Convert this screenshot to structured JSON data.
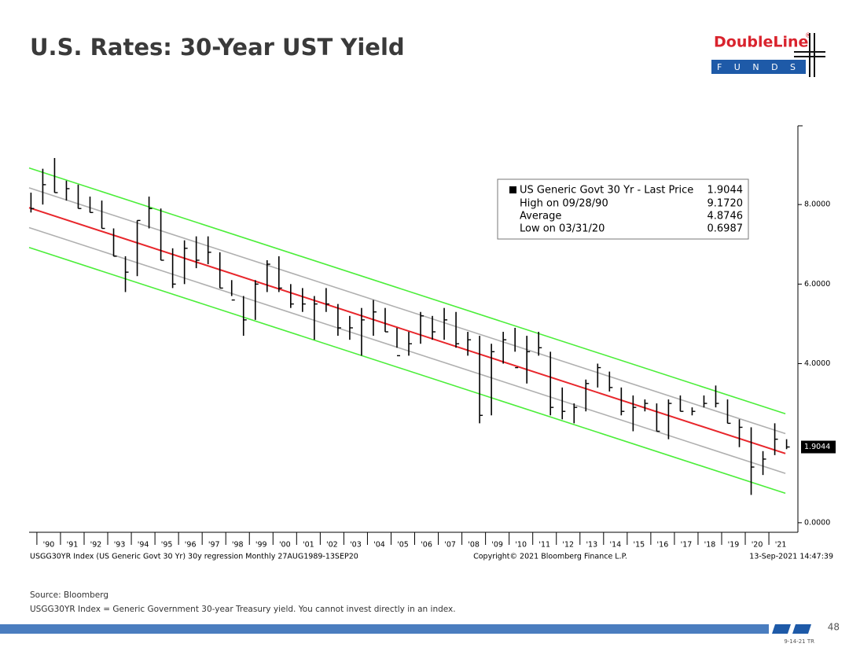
{
  "header": {
    "title": "U.S. Rates: 30-Year UST Yield",
    "logo": "DoubleLine",
    "logo_mark": "®",
    "logo_sub": "F U N D S"
  },
  "chart_data": {
    "type": "ohlc",
    "x": [
      1989.5,
      1990.0,
      1990.5,
      1991.0,
      1991.5,
      1992.0,
      1992.5,
      1993.0,
      1993.5,
      1994.0,
      1994.5,
      1995.0,
      1995.5,
      1996.0,
      1996.5,
      1997.0,
      1997.5,
      1998.0,
      1998.5,
      1999.0,
      1999.5,
      2000.0,
      2000.5,
      2001.0,
      2001.5,
      2002.0,
      2002.5,
      2003.0,
      2003.5,
      2004.0,
      2004.5,
      2005.0,
      2005.5,
      2006.0,
      2006.5,
      2007.0,
      2007.5,
      2008.0,
      2008.5,
      2009.0,
      2009.5,
      2010.0,
      2010.5,
      2011.0,
      2011.5,
      2012.0,
      2012.5,
      2013.0,
      2013.5,
      2014.0,
      2014.5,
      2015.0,
      2015.5,
      2016.0,
      2016.5,
      2017.0,
      2017.5,
      2018.0,
      2018.5,
      2019.0,
      2019.5,
      2020.0,
      2020.5,
      2021.0,
      2021.5
    ],
    "low": [
      7.8,
      8.0,
      8.3,
      8.1,
      7.9,
      7.8,
      7.4,
      6.7,
      5.8,
      6.2,
      7.4,
      6.6,
      5.9,
      6.0,
      6.4,
      6.5,
      5.9,
      5.7,
      4.7,
      5.1,
      5.8,
      5.8,
      5.4,
      5.3,
      4.6,
      5.3,
      4.7,
      4.6,
      4.2,
      4.7,
      4.8,
      4.4,
      4.2,
      4.5,
      4.6,
      4.6,
      4.4,
      4.2,
      2.5,
      2.7,
      4.0,
      4.3,
      3.5,
      4.2,
      2.7,
      2.6,
      2.5,
      2.8,
      3.4,
      3.3,
      2.7,
      2.3,
      2.8,
      2.3,
      2.1,
      2.8,
      2.7,
      2.9,
      2.9,
      2.5,
      1.9,
      0.7,
      1.2,
      1.7,
      1.85
    ],
    "high": [
      8.3,
      8.9,
      9.17,
      8.6,
      8.5,
      8.2,
      8.1,
      7.4,
      6.7,
      7.6,
      8.2,
      7.9,
      6.9,
      7.1,
      7.2,
      7.2,
      6.8,
      6.1,
      5.7,
      6.1,
      6.6,
      6.7,
      6.0,
      5.9,
      5.7,
      5.9,
      5.5,
      5.2,
      5.4,
      5.6,
      5.4,
      4.9,
      4.8,
      5.3,
      5.2,
      5.4,
      5.3,
      4.8,
      4.7,
      4.5,
      4.8,
      4.9,
      4.7,
      4.8,
      4.3,
      3.4,
      3.0,
      3.6,
      4.0,
      3.8,
      3.4,
      3.2,
      3.1,
      3.0,
      3.1,
      3.2,
      2.9,
      3.2,
      3.45,
      3.1,
      2.6,
      2.4,
      1.8,
      2.5,
      2.1
    ],
    "close": [
      7.9,
      8.5,
      8.3,
      8.4,
      7.9,
      7.8,
      7.4,
      6.7,
      6.3,
      7.6,
      7.9,
      6.6,
      6.0,
      6.9,
      6.6,
      6.8,
      5.9,
      5.6,
      5.1,
      6.0,
      6.5,
      5.9,
      5.5,
      5.5,
      5.5,
      5.5,
      4.9,
      4.9,
      5.1,
      5.3,
      4.8,
      4.2,
      4.5,
      5.2,
      4.8,
      5.1,
      4.5,
      4.6,
      2.7,
      4.3,
      4.6,
      3.9,
      4.3,
      4.4,
      2.9,
      2.8,
      2.9,
      3.5,
      3.9,
      3.4,
      2.8,
      2.9,
      3.0,
      2.3,
      3.0,
      2.8,
      2.8,
      3.0,
      3.0,
      2.5,
      2.4,
      1.4,
      1.6,
      2.1,
      1.9044
    ],
    "color": "#000000",
    "regression": {
      "x": [
        1989.67,
        2021.7
      ],
      "lines": [
        {
          "values": [
            8.92,
            2.74
          ],
          "color": "#4cee3a"
        },
        {
          "values": [
            8.42,
            2.24
          ],
          "color": "#b0b0b0"
        },
        {
          "values": [
            7.92,
            1.74
          ],
          "color": "#e8262b"
        },
        {
          "values": [
            7.42,
            1.24
          ],
          "color": "#b0b0b0"
        },
        {
          "values": [
            6.92,
            0.74
          ],
          "color": "#4cee3a"
        }
      ]
    },
    "last_price": 1.9044,
    "legend": {
      "name": "US Generic Govt 30 Yr - Last Price",
      "stats": [
        {
          "name": "High on 09/28/90",
          "value": 9.172,
          "value_label": "9.1720"
        },
        {
          "name": "Average",
          "value": 4.8746
        },
        {
          "name": "Low on 03/31/20",
          "value": 0.6987
        }
      ]
    },
    "xlim": [
      1989.67,
      2021.83
    ],
    "ylim": [
      -0.24,
      9.98
    ],
    "yticks": [
      {
        "value": 0,
        "label": "0.0000"
      },
      {
        "value": 4,
        "label": "4.0000"
      },
      {
        "value": 6,
        "label": "6.0000"
      },
      {
        "value": 8,
        "label": "8.0000"
      }
    ],
    "xticks": [
      {
        "value": 1990,
        "label": "'90"
      },
      {
        "value": 1991,
        "label": "'91"
      },
      {
        "value": 1992,
        "label": "'92"
      },
      {
        "value": 1993,
        "label": "'93"
      },
      {
        "value": 1994,
        "label": "'94"
      },
      {
        "value": 1995,
        "label": "'95"
      },
      {
        "value": 1996,
        "label": "'96"
      },
      {
        "value": 1997,
        "label": "'97"
      },
      {
        "value": 1998,
        "label": "'98"
      },
      {
        "value": 1999,
        "label": "'99"
      },
      {
        "value": 2000,
        "label": "'00"
      },
      {
        "value": 2001,
        "label": "'01"
      },
      {
        "value": 2002,
        "label": "'02"
      },
      {
        "value": 2003,
        "label": "'03"
      },
      {
        "value": 2004,
        "label": "'04"
      },
      {
        "value": 2005,
        "label": "'05"
      },
      {
        "value": 2006,
        "label": "'06"
      },
      {
        "value": 2007,
        "label": "'07"
      },
      {
        "value": 2008,
        "label": "'08"
      },
      {
        "value": 2009,
        "label": "'09"
      },
      {
        "value": 2010,
        "label": "'10"
      },
      {
        "value": 2011,
        "label": "'11"
      },
      {
        "value": 2012,
        "label": "'12"
      },
      {
        "value": 2013,
        "label": "'13"
      },
      {
        "value": 2014,
        "label": "'14"
      },
      {
        "value": 2015,
        "label": "'15"
      },
      {
        "value": 2016,
        "label": "'16"
      },
      {
        "value": 2017,
        "label": "'17"
      },
      {
        "value": 2018,
        "label": "'18"
      },
      {
        "value": 2019,
        "label": "'19"
      },
      {
        "value": 2020,
        "label": "'20"
      },
      {
        "value": 2021,
        "label": "'21"
      }
    ],
    "footer_left": "USGG30YR Index (US Generic Govt 30 Yr) 30y regression  Monthly 27AUG1989-13SEP20",
    "footer_center": "Copyright© 2021 Bloomberg Finance L.P.",
    "footer_right": "13-Sep-2021 14:47:39"
  },
  "notes": {
    "source": "Source: Bloomberg",
    "disclaimer": "USGG30YR Index = Generic Government 30-year Treasury yield.  You cannot invest directly in an index."
  },
  "page_number": "48",
  "doc_code": "9-14-21 TR"
}
